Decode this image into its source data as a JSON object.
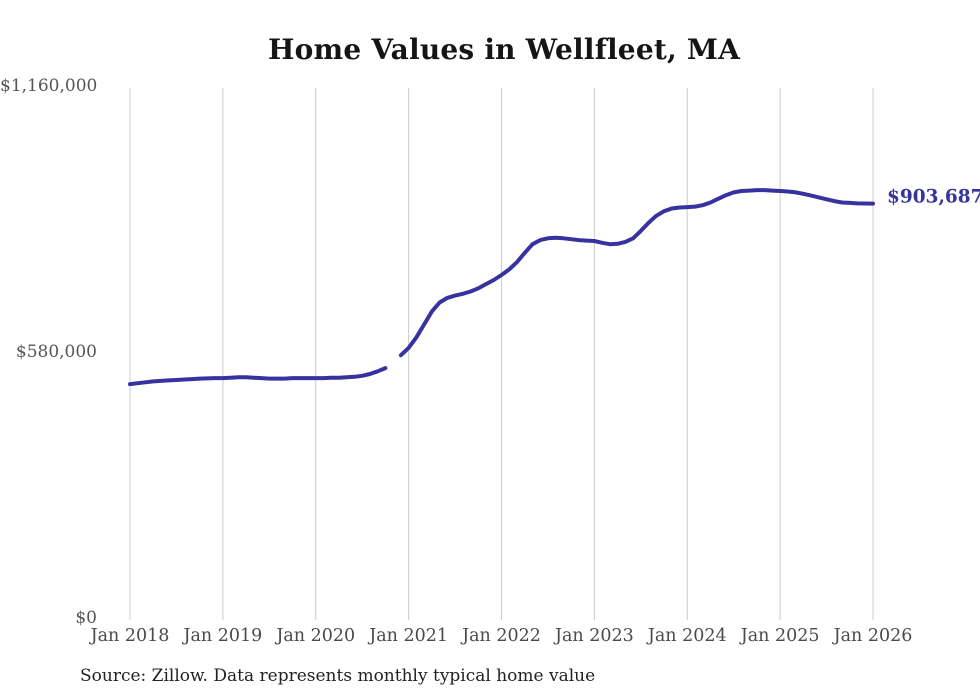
{
  "chart": {
    "title": "Home Values in Wellfleet, MA",
    "source_note": "Source: Zillow. Data represents monthly typical home value"
  },
  "chart_data": {
    "type": "line",
    "title": "Home Values in Wellfleet, MA",
    "x_start": "Jan 2018",
    "x_end": "Jan 2026",
    "interval": "monthly",
    "x_tick_labels": [
      "Jan 2018",
      "Jan 2019",
      "Jan 2020",
      "Jan 2021",
      "Jan 2022",
      "Jan 2023",
      "Jan 2024",
      "Jan 2025",
      "Jan 2026"
    ],
    "y_ticks": [
      {
        "label": "$0",
        "value": 0
      },
      {
        "label": "$580,000",
        "value": 580000
      },
      {
        "label": "$1,160,000",
        "value": 1160000
      }
    ],
    "ylim": [
      0,
      1160000
    ],
    "grid": "vertical-only",
    "legend": "none",
    "line_color": "#37329f",
    "grid_color": "#cccccc",
    "end_label": "$903,687",
    "end_value": 903687,
    "series": [
      {
        "name": "Typical home value",
        "values": [
          510000,
          512000,
          514000,
          516000,
          517000,
          518000,
          519000,
          520000,
          521000,
          522000,
          522500,
          523000,
          523000,
          524000,
          525000,
          525000,
          524000,
          523000,
          522000,
          522000,
          522000,
          523000,
          523000,
          523000,
          523000,
          523000,
          524000,
          524000,
          525000,
          526000,
          528000,
          532000,
          538000,
          545000,
          null,
          573000,
          589000,
          612000,
          640000,
          668000,
          688000,
          698000,
          703000,
          707000,
          712000,
          719000,
          728000,
          737000,
          748000,
          760000,
          776000,
          796000,
          815000,
          824000,
          828000,
          829000,
          828000,
          826000,
          824000,
          823000,
          822000,
          818000,
          815000,
          816000,
          820000,
          828000,
          844000,
          862000,
          877000,
          887000,
          893000,
          895000,
          896000,
          897000,
          900000,
          906000,
          914000,
          922000,
          928000,
          931000,
          932000,
          933000,
          933000,
          932000,
          931000,
          930000,
          928000,
          925000,
          921000,
          917000,
          913000,
          909000,
          906000,
          905000,
          904000,
          903900,
          903687
        ]
      }
    ]
  }
}
